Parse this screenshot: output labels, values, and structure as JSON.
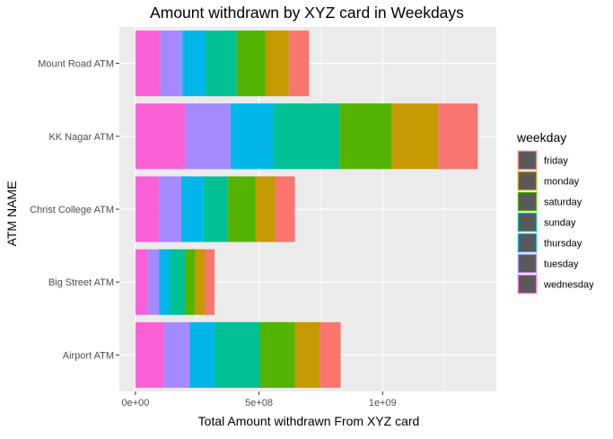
{
  "chart_data": {
    "type": "bar",
    "orientation": "horizontal",
    "stacked": true,
    "title": "Amount withdrawn by XYZ card in Weekdays",
    "xlabel": "Total Amount withdrawn From XYZ card",
    "ylabel": "ATM NAME",
    "xlim": [
      -65000000,
      1460000000
    ],
    "xticks": [
      0,
      500000000,
      1000000000
    ],
    "xtick_labels": [
      "0e+00",
      "5e+08",
      "1e+09"
    ],
    "categories": [
      "Mount Road ATM",
      "KK Nagar ATM",
      "Christ College ATM",
      "Big Street ATM",
      "Airport ATM"
    ],
    "legend": {
      "title": "weekday",
      "position": "right"
    },
    "series": [
      {
        "name": "friday",
        "color": "#F8766D",
        "values": [
          82000000,
          160000000,
          80000000,
          40000000,
          85000000
        ]
      },
      {
        "name": "monday",
        "color": "#C49A00",
        "values": [
          95000000,
          190000000,
          80000000,
          40000000,
          100000000
        ]
      },
      {
        "name": "saturday",
        "color": "#53B400",
        "values": [
          115000000,
          210000000,
          110000000,
          40000000,
          140000000
        ]
      },
      {
        "name": "sunday",
        "color": "#00C094",
        "values": [
          125000000,
          265000000,
          100000000,
          60000000,
          185000000
        ]
      },
      {
        "name": "thursday",
        "color": "#00B6EB",
        "values": [
          95000000,
          175000000,
          90000000,
          45000000,
          100000000
        ]
      },
      {
        "name": "tuesday",
        "color": "#A58AFF",
        "values": [
          90000000,
          185000000,
          90000000,
          45000000,
          105000000
        ]
      },
      {
        "name": "wednesday",
        "color": "#FB61D7",
        "values": [
          100000000,
          200000000,
          95000000,
          50000000,
          115000000
        ]
      }
    ],
    "grid": true,
    "panel_background": "#EBEBEB"
  }
}
